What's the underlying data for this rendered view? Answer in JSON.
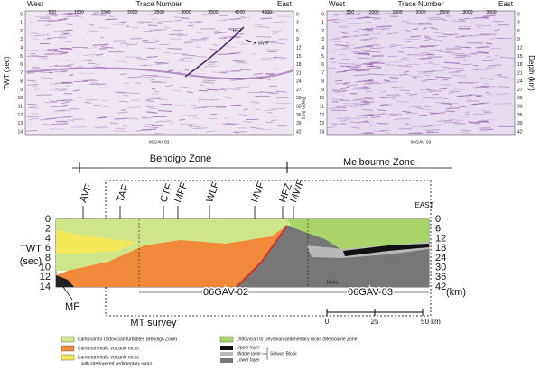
{
  "seismic_panels": [
    {
      "west": "West",
      "axis_title": "Trace Number",
      "east": "East",
      "x_ticks": [
        500,
        1000,
        1500,
        2000,
        2500,
        3000,
        3500,
        4000,
        4500
      ],
      "caption": "06GAV-02",
      "annotations": [
        "HFZ",
        "MWF"
      ]
    },
    {
      "west": "West",
      "axis_title": "Trace Number",
      "east": "East",
      "x_ticks": [
        500,
        1000,
        1500,
        2000,
        2500,
        3000,
        3500
      ],
      "caption": "06GAV-03"
    }
  ],
  "seismic_axes": {
    "left_title": "TWT (sec)",
    "right_title": "Depth (km)",
    "twt_ticks": [
      0,
      1,
      2,
      3,
      4,
      5,
      6,
      7,
      8,
      9,
      10,
      11,
      12,
      13,
      14
    ],
    "depth_ticks": [
      0,
      3,
      6,
      9,
      12,
      15,
      18,
      21,
      24,
      27,
      30,
      33,
      36,
      39,
      42
    ]
  },
  "section": {
    "zones": [
      "Bendigo Zone",
      "Melbourne Zone"
    ],
    "faults": [
      "AVF",
      "TAF",
      "CTF",
      "MFF",
      "WLF",
      "MVF",
      "HFZ",
      "MWF"
    ],
    "east": "EAST",
    "left_title": [
      "TWT",
      "(sec)"
    ],
    "twt_ticks": [
      0,
      2,
      4,
      6,
      8,
      10,
      12,
      14
    ],
    "depth_ticks": [
      0,
      6,
      12,
      18,
      24,
      30,
      36,
      42
    ],
    "depth_unit": "(km)",
    "bottom_fault": "MF",
    "lines": [
      "06GAV-02",
      "06GAV-03"
    ],
    "moho": "Moho",
    "mt_survey": "MT survey",
    "scale": [
      "0",
      "25",
      "50 km"
    ]
  },
  "legend": {
    "items": [
      {
        "text": [
          "Cambrian to Ordovician turbidites (Bendigo Zone)"
        ]
      },
      {
        "text": [
          "Cambrian mafic volcanic rocks"
        ]
      },
      {
        "text": [
          "Cambrian mafic volcanic rocks",
          "with interlayered sedimentary rocks"
        ]
      },
      {
        "text": [
          "Ordovician to Devonian sedimentary rocks (Melbourne Zone)"
        ]
      }
    ],
    "selwyn": {
      "layers": [
        "Upper layer",
        "Middle layer",
        "Lower layer"
      ],
      "label": "Selwyn Block"
    }
  }
}
